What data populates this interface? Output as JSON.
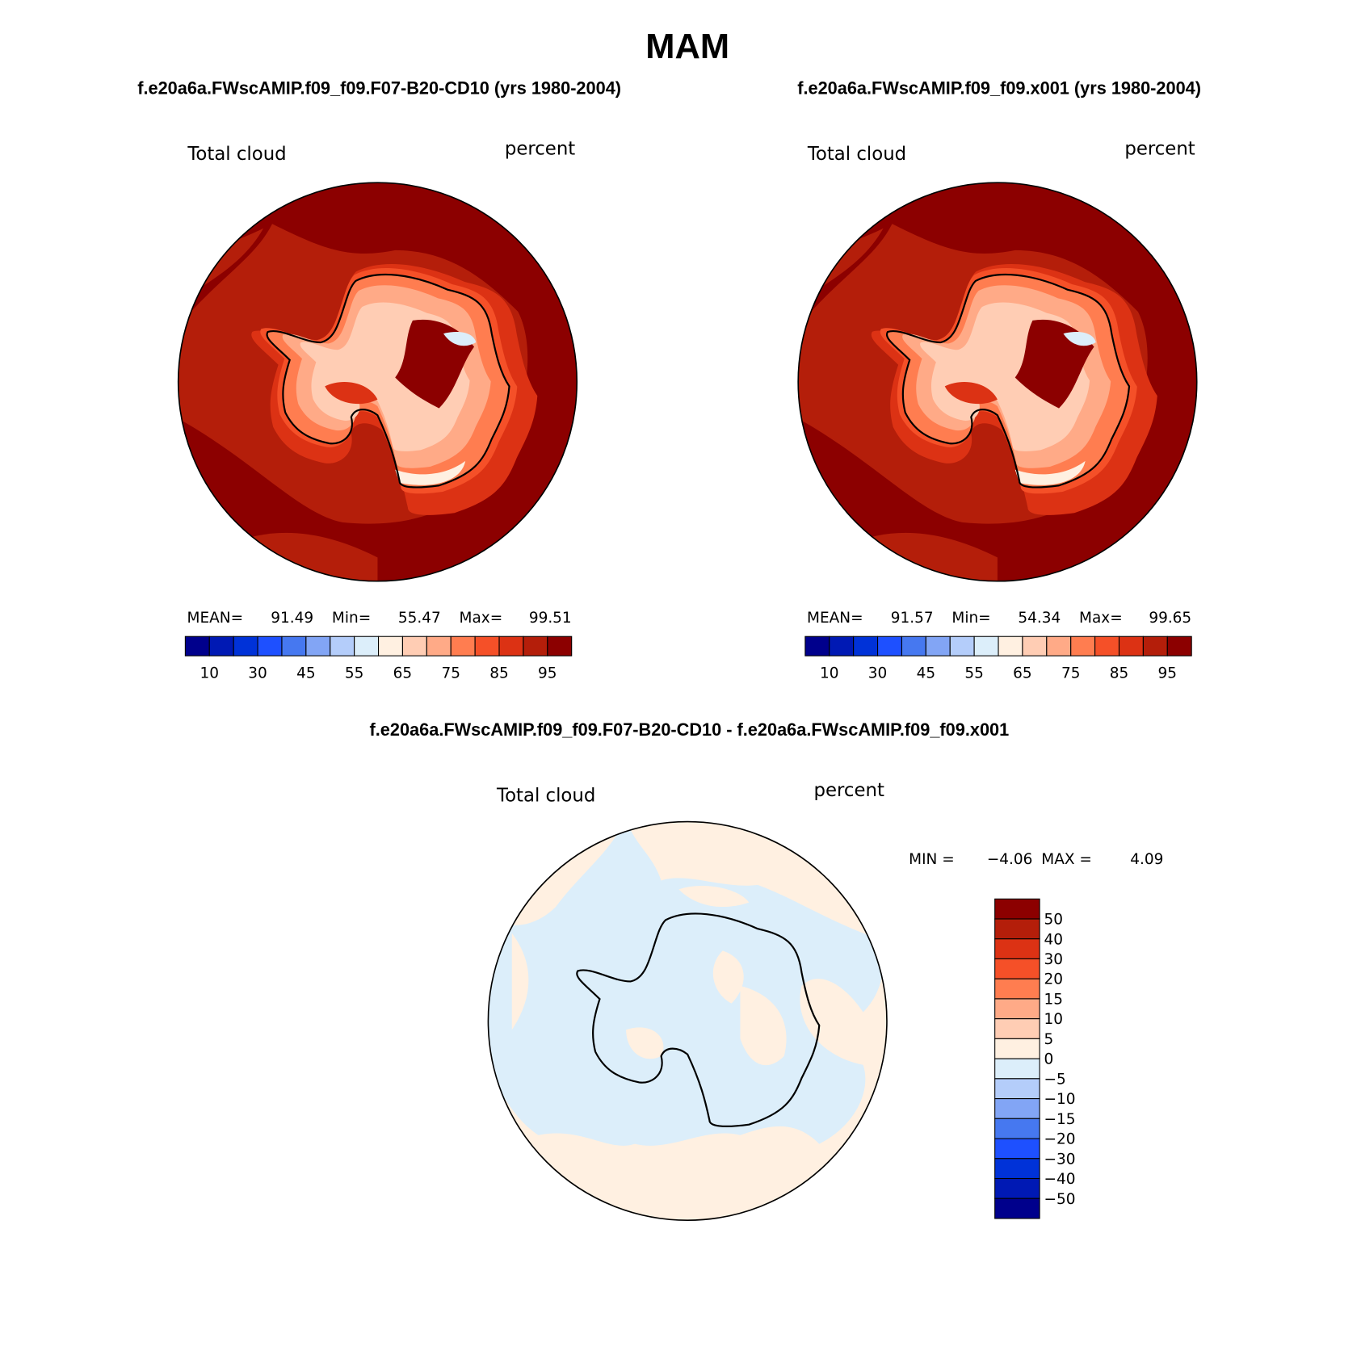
{
  "title": "MAM",
  "panels": [
    {
      "subtitle": "f.e20a6a.FWscAMIP.f09_f09.F07-B20-CD10 (yrs 1980-2004)",
      "left_label": "Total cloud",
      "right_label": "percent",
      "stats": [
        {
          "label": "MEAN=",
          "value": 91.49
        },
        {
          "label": "Min=",
          "value": 55.47
        },
        {
          "label": "Max=",
          "value": 99.51
        }
      ],
      "colorbar": {
        "colors": [
          "#00008c",
          "#0019b4",
          "#0032d8",
          "#1e50ff",
          "#4678f0",
          "#82a5f5",
          "#b4cdfa",
          "#dceefa",
          "#fff0e1",
          "#ffcdb4",
          "#ffaa87",
          "#ff7d50",
          "#f55028",
          "#dc3214",
          "#b41e0a",
          "#8c0000"
        ],
        "labels": [
          10,
          30,
          45,
          55,
          65,
          75,
          85,
          95
        ]
      }
    },
    {
      "subtitle": "f.e20a6a.FWscAMIP.f09_f09.x001 (yrs 1980-2004)",
      "left_label": "Total cloud",
      "right_label": "percent",
      "stats": [
        {
          "label": "MEAN=",
          "value": 91.57
        },
        {
          "label": "Min=",
          "value": 54.34
        },
        {
          "label": "Max=",
          "value": 99.65
        }
      ],
      "colorbar": {
        "colors": [
          "#00008c",
          "#0019b4",
          "#0032d8",
          "#1e50ff",
          "#4678f0",
          "#82a5f5",
          "#b4cdfa",
          "#dceefa",
          "#fff0e1",
          "#ffcdb4",
          "#ffaa87",
          "#ff7d50",
          "#f55028",
          "#dc3214",
          "#b41e0a",
          "#8c0000"
        ],
        "labels": [
          10,
          30,
          45,
          55,
          65,
          75,
          85,
          95
        ]
      }
    }
  ],
  "difference": {
    "subtitle": "f.e20a6a.FWscAMIP.f09_f09.F07-B20-CD10 - f.e20a6a.FWscAMIP.f09_f09.x001",
    "left_label": "Total cloud",
    "right_label": "percent",
    "stats": [
      {
        "label": "MIN =",
        "value": "−4.06"
      },
      {
        "label": "MAX =",
        "value": 4.09
      }
    ],
    "colorbar": {
      "colors": [
        "#8c0000",
        "#b41e0a",
        "#dc3214",
        "#f55028",
        "#ff7d50",
        "#ffaa87",
        "#ffcdb4",
        "#fff0e1",
        "#dceefa",
        "#b4cdfa",
        "#82a5f5",
        "#4678f0",
        "#1e50ff",
        "#0032d8",
        "#0019b4",
        "#00008c"
      ],
      "labels": [
        "50",
        "40",
        "30",
        "20",
        "15",
        "10",
        "5",
        "0",
        "−5",
        "−10",
        "−15",
        "−20",
        "−30",
        "−40",
        "−50"
      ]
    }
  }
}
